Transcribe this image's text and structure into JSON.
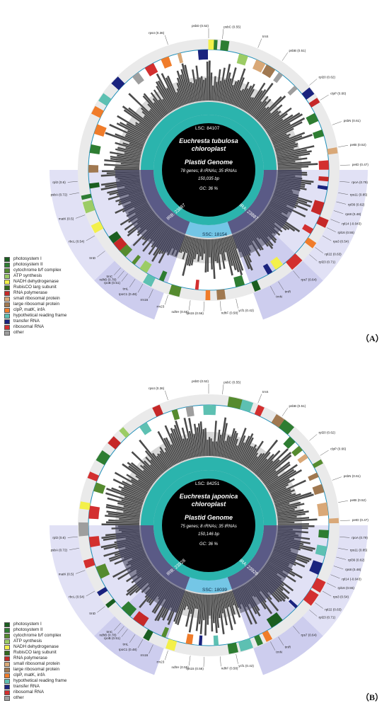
{
  "legend": [
    {
      "label": "photosystem I",
      "color": "#1b5e20"
    },
    {
      "label": "photosystem II",
      "color": "#2e7d32"
    },
    {
      "label": "cytochrome b/f complex",
      "color": "#558b2f"
    },
    {
      "label": "ATP synthesis",
      "color": "#9ccc65"
    },
    {
      "label": "NADH dehydrogenase",
      "color": "#f3f04a"
    },
    {
      "label": "RubisCO larg subunit",
      "color": "#33691e"
    },
    {
      "label": "RNA polymerase",
      "color": "#c62828"
    },
    {
      "label": "small ribosomal protein",
      "color": "#d9a877"
    },
    {
      "label": "large ribosomal protein",
      "color": "#a07850"
    },
    {
      "label": "clpP, matK, infA",
      "color": "#f07c2a"
    },
    {
      "label": "hypothetical reading frame",
      "color": "#5dc0b2"
    },
    {
      "label": "transfer RNA",
      "color": "#1a237e"
    },
    {
      "label": "ribosomal RNA",
      "color": "#d32f2f"
    },
    {
      "label": "other",
      "color": "#9e9e9e"
    }
  ],
  "colors": {
    "lsc": "#2bb4ad",
    "irA": "#5a5a86",
    "irB": "#5a5a86",
    "ssc": "#74c6e6",
    "ir_shade": "#c8c8ec",
    "ring_base": "#eaeaea",
    "gc_dark": "#4a4a4a"
  },
  "maps": [
    {
      "panel_label": "（A）",
      "species": "Euchresta tubulosa",
      "title_line2": "chloroplast",
      "subtitle": "Plastid Genome",
      "genes_line": "78 genes; 8 rRNAs; 35 tRNAs",
      "size": "150,035 bp",
      "gc": "GC: 36 %",
      "lsc_label": "LSC: 84107",
      "ssc_label": "SSC: 18154",
      "irb_label": "IRB: 23887",
      "ira_label": "IRA: 23887"
    },
    {
      "panel_label": "（B）",
      "species": "Euchresta japonica",
      "title_line2": "chloroplast",
      "subtitle": "Plastid Genome",
      "genes_line": "75 genes; 8 rRNAs; 35 tRNAs",
      "size": "150,146 bp",
      "gc": "GC: 36 %",
      "lsc_label": "LSC: 84251",
      "ssc_label": "SSC: 18039",
      "irb_label": "IRB: 23928",
      "ira_label": "IRA: 23928"
    }
  ],
  "gene_labels": [
    {
      "text": "psbA (0.72)",
      "angle": -100
    },
    {
      "text": "matK (0.5)",
      "angle": -110
    },
    {
      "text": "rbcL (0.54)",
      "angle": -120
    },
    {
      "text": "trnC",
      "angle": -138
    },
    {
      "text": "trnD",
      "angle": -128
    },
    {
      "text": "rpoC1 (0.48)",
      "angle": -150
    },
    {
      "text": "rpoB (0.51)",
      "angle": -142
    },
    {
      "text": "psbD (0.52)",
      "angle": 0
    },
    {
      "text": "psbC (0.55)",
      "angle": 6
    },
    {
      "text": "rps4 (0.36)",
      "angle": -18
    },
    {
      "text": "trnS",
      "angle": 22
    },
    {
      "text": "psbB (0.51)",
      "angle": 34
    },
    {
      "text": "rpl20 (0.62)",
      "angle": 50
    },
    {
      "text": "clpP (0.66)",
      "angle": 58
    },
    {
      "text": "psbN (0.61)",
      "angle": 70
    },
    {
      "text": "petB (0.52)",
      "angle": 80
    },
    {
      "text": "petD (0.47)",
      "angle": 88
    },
    {
      "text": "rpoA (0.79)",
      "angle": 95
    },
    {
      "text": "rps11 (0.85)",
      "angle": 100
    },
    {
      "text": "rpl36 (0.62)",
      "angle": 104
    },
    {
      "text": "rps8 (0.48)",
      "angle": 108
    },
    {
      "text": "rpl14 (-0.043)",
      "angle": 112
    },
    {
      "text": "rpl16 (0.55)",
      "angle": 116
    },
    {
      "text": "rps3 (0.54)",
      "angle": 120
    },
    {
      "text": "rpl22 (0.63)",
      "angle": 126
    },
    {
      "text": "rpl23 (0.71)",
      "angle": 130
    },
    {
      "text": "rpl2 (0.6)",
      "angle": -95
    },
    {
      "text": "ndhB (0.78)",
      "angle": -140
    },
    {
      "text": "rps7 (0.64)",
      "angle": 140
    },
    {
      "text": "ycf1 (0.42)",
      "angle": 168
    },
    {
      "text": "ndhF (0.58)",
      "angle": 175
    },
    {
      "text": "rps15 (0.56)",
      "angle": -178
    },
    {
      "text": "ndhH (0.55)",
      "angle": -172
    },
    {
      "text": "rrn16",
      "angle": -155
    },
    {
      "text": "rrn23",
      "angle": -162
    },
    {
      "text": "trnN",
      "angle": 152
    },
    {
      "text": "trnR",
      "angle": 148
    },
    {
      "text": "trnL",
      "angle": -146
    }
  ]
}
